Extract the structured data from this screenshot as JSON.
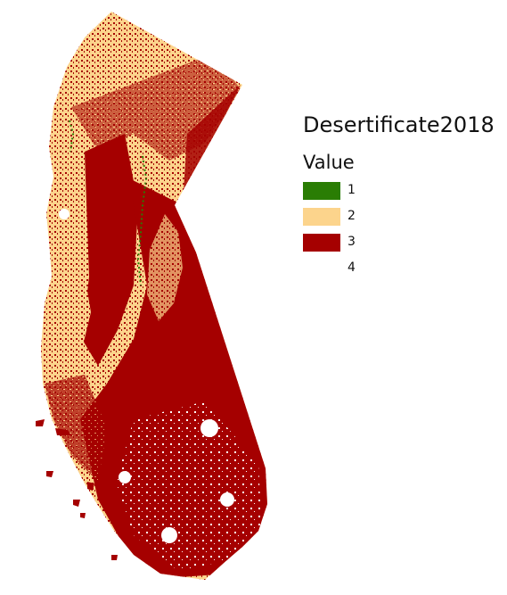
{
  "legend": {
    "title": "Desertificate2018",
    "field": "Value",
    "items": [
      {
        "label": "1",
        "color": "#2a7d04"
      },
      {
        "label": "2",
        "color": "#fcd48c"
      },
      {
        "label": "3",
        "color": "#a50000"
      },
      {
        "label": "4",
        "color": "#ffffff"
      }
    ]
  },
  "map": {
    "region_shape": "California"
  }
}
